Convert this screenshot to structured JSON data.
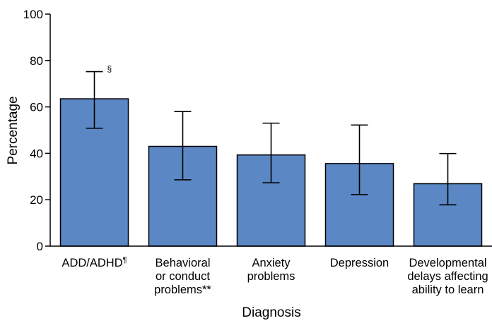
{
  "chart_data": {
    "type": "bar",
    "xlabel": "Diagnosis",
    "ylabel": "Percentage",
    "ylim": [
      0,
      100
    ],
    "yticks": [
      0,
      20,
      40,
      60,
      80,
      100
    ],
    "grid": false,
    "bar_color": "#5b87c5",
    "categories": [
      {
        "lines": [
          "ADD/ADHD"
        ],
        "mark": "¶"
      },
      {
        "lines": [
          "Behavioral",
          "or conduct",
          "problems**"
        ],
        "mark": ""
      },
      {
        "lines": [
          "Anxiety",
          "problems"
        ],
        "mark": ""
      },
      {
        "lines": [
          "Depression"
        ],
        "mark": ""
      },
      {
        "lines": [
          "Developmental",
          "delays affecting",
          "ability to learn"
        ],
        "mark": ""
      }
    ],
    "values": [
      63.5,
      43,
      39.3,
      35.6,
      26.9
    ],
    "error_low": [
      50.8,
      28.6,
      27.3,
      22.2,
      17.8
    ],
    "error_high": [
      75.2,
      58,
      53,
      52.2,
      39.9
    ],
    "annotations": [
      {
        "category_index": 0,
        "text": "§"
      }
    ]
  }
}
